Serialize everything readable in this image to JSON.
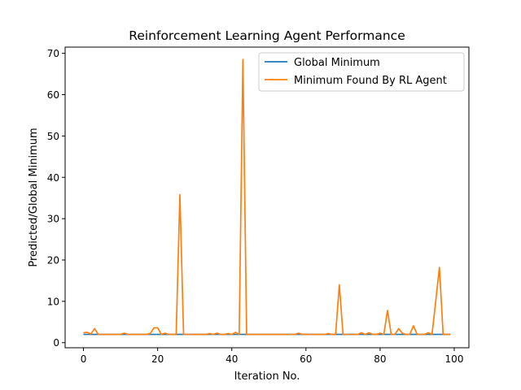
{
  "chart_data": {
    "type": "line",
    "title": "Reinforcement Learning Agent Performance",
    "xlabel": "Iteration No.",
    "ylabel": "Predicted/Global Minimum",
    "xlim": [
      -4.95,
      103.95
    ],
    "ylim": [
      -1.23,
      71.5
    ],
    "xticks": [
      0,
      20,
      40,
      60,
      80,
      100
    ],
    "yticks": [
      0,
      10,
      20,
      30,
      40,
      50,
      60,
      70
    ],
    "grid": false,
    "legend_position": "top-right",
    "x": [
      0,
      1,
      2,
      3,
      4,
      5,
      6,
      7,
      8,
      9,
      10,
      11,
      12,
      13,
      14,
      15,
      16,
      17,
      18,
      19,
      20,
      21,
      22,
      23,
      24,
      25,
      26,
      27,
      28,
      29,
      30,
      31,
      32,
      33,
      34,
      35,
      36,
      37,
      38,
      39,
      40,
      41,
      42,
      43,
      44,
      45,
      46,
      47,
      48,
      49,
      50,
      51,
      52,
      53,
      54,
      55,
      56,
      57,
      58,
      59,
      60,
      61,
      62,
      63,
      64,
      65,
      66,
      67,
      68,
      69,
      70,
      71,
      72,
      73,
      74,
      75,
      76,
      77,
      78,
      79,
      80,
      81,
      82,
      83,
      84,
      85,
      86,
      87,
      88,
      89,
      90,
      91,
      92,
      93,
      94,
      95,
      96,
      97,
      98,
      99
    ],
    "series": [
      {
        "name": "Global Minimum",
        "color": "#1f77b4",
        "values": [
          2,
          2,
          2,
          2,
          2,
          2,
          2,
          2,
          2,
          2,
          2,
          2,
          2,
          2,
          2,
          2,
          2,
          2,
          2,
          2,
          2,
          2,
          2,
          2,
          2,
          2,
          2,
          2,
          2,
          2,
          2,
          2,
          2,
          2,
          2,
          2,
          2,
          2,
          2,
          2,
          2,
          2,
          2,
          2,
          2,
          2,
          2,
          2,
          2,
          2,
          2,
          2,
          2,
          2,
          2,
          2,
          2,
          2,
          2,
          2,
          2,
          2,
          2,
          2,
          2,
          2,
          2,
          2,
          2,
          2,
          2,
          2,
          2,
          2,
          2,
          2,
          2,
          2,
          2,
          2,
          2,
          2,
          2,
          2,
          2,
          2,
          2,
          2,
          2,
          2,
          2,
          2,
          2,
          2,
          2,
          2,
          2,
          2,
          2,
          2
        ]
      },
      {
        "name": "Minimum Found By RL Agent",
        "color": "#ff7f0e",
        "values": [
          2.4,
          2.5,
          2.1,
          3.4,
          2.0,
          2.0,
          2.0,
          2.0,
          2.0,
          2.0,
          2.0,
          2.3,
          2.0,
          2.0,
          2.0,
          2.0,
          2.0,
          2.0,
          2.2,
          3.6,
          3.6,
          2.0,
          2.3,
          2.0,
          2.0,
          2.0,
          35.8,
          2.0,
          2.0,
          2.0,
          2.0,
          2.0,
          2.0,
          2.0,
          2.2,
          2.0,
          2.3,
          2.0,
          2.0,
          2.2,
          2.0,
          2.5,
          2.0,
          68.5,
          2.0,
          2.0,
          2.0,
          2.0,
          2.0,
          2.0,
          2.0,
          2.0,
          2.0,
          2.0,
          2.0,
          2.0,
          2.0,
          2.0,
          2.3,
          2.0,
          2.0,
          2.0,
          2.0,
          2.0,
          2.0,
          2.0,
          2.2,
          2.0,
          2.0,
          14.0,
          2.0,
          2.0,
          2.0,
          2.0,
          2.0,
          2.4,
          2.0,
          2.4,
          2.0,
          2.0,
          2.3,
          2.0,
          7.8,
          2.0,
          2.0,
          3.4,
          2.3,
          2.0,
          2.0,
          4.1,
          2.0,
          2.0,
          2.0,
          2.4,
          2.0,
          10.0,
          18.2,
          2.0,
          2.0,
          2.0
        ]
      }
    ]
  }
}
